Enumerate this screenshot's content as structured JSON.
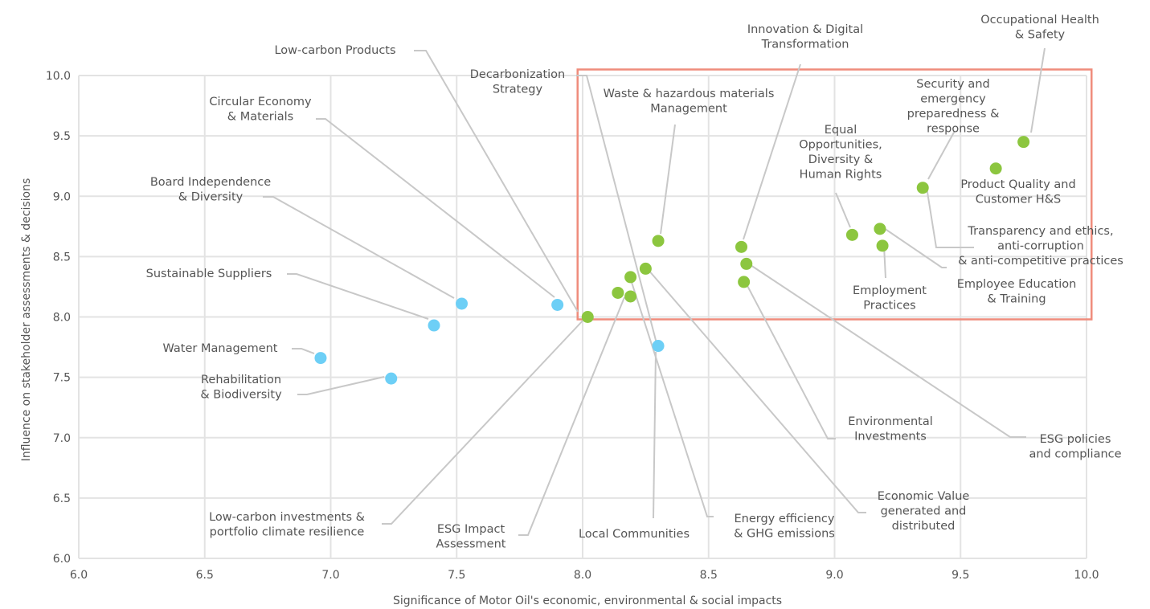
{
  "chart_data": {
    "type": "scatter",
    "title": "",
    "xlabel": "Significance of Motor Oil's economic, environmental & social impacts",
    "ylabel": "Influence on stakeholder assessments & decisions",
    "xlim": [
      6.0,
      10.0
    ],
    "ylim": [
      6.0,
      10.0
    ],
    "x_ticks": [
      "6.0",
      "6.5",
      "7.0",
      "7.5",
      "8.0",
      "8.5",
      "9.0",
      "9.5",
      "10.0"
    ],
    "y_ticks": [
      "10.0",
      "9.5",
      "9.0",
      "8.5",
      "8.0",
      "7.5",
      "7.0",
      "6.5",
      "6.0"
    ],
    "grid": true,
    "highlight_region": {
      "x": [
        7.98,
        10.02
      ],
      "y": [
        7.98,
        10.05
      ],
      "color": "#ef8c7c"
    },
    "colors": {
      "material": "#8cc63f",
      "other": "#6dcff6",
      "leader": "#c8c8c8",
      "grid": "#e3e3e3",
      "text": "#555555"
    },
    "points": [
      {
        "label": [
          "Occupational Health",
          "& Safety"
        ],
        "x": 9.75,
        "y": 9.45,
        "group": "material"
      },
      {
        "label": [
          "Product Quality and",
          "Customer H&S"
        ],
        "x": 9.64,
        "y": 9.23,
        "group": "material"
      },
      {
        "label": [
          "Security and",
          "emergency",
          "preparedness &",
          "response"
        ],
        "x": 9.35,
        "y": 9.07,
        "group": "material"
      },
      {
        "label": [
          "Equal",
          "Opportunities,",
          "Diversity &",
          "Human Rights"
        ],
        "x": 9.07,
        "y": 8.68,
        "group": "material"
      },
      {
        "label": [
          "Transparency and ethics,",
          "anti-corruption",
          "& anti-competitive practices"
        ],
        "x": 9.35,
        "y": 9.07,
        "group": "material"
      },
      {
        "label": [
          "Employee Education",
          "& Training"
        ],
        "x": 9.18,
        "y": 8.73,
        "group": "material"
      },
      {
        "label": [
          "Employment",
          "Practices"
        ],
        "x": 9.19,
        "y": 8.59,
        "group": "material"
      },
      {
        "label": [
          "Innovation & Digital",
          "Transformation"
        ],
        "x": 8.63,
        "y": 8.58,
        "group": "material"
      },
      {
        "label": [
          "ESG policies",
          "and compliance"
        ],
        "x": 8.65,
        "y": 8.44,
        "group": "material"
      },
      {
        "label": [
          "Environmental",
          "Investments"
        ],
        "x": 8.64,
        "y": 8.29,
        "group": "material"
      },
      {
        "label": [
          "Waste & hazardous materials",
          "Management"
        ],
        "x": 8.3,
        "y": 8.63,
        "group": "material"
      },
      {
        "label": [
          "Economic Value",
          "generated and",
          "distributed"
        ],
        "x": 8.25,
        "y": 8.4,
        "group": "material"
      },
      {
        "label": [
          "Energy efficiency",
          "& GHG emissions"
        ],
        "x": 8.19,
        "y": 8.33,
        "group": "material"
      },
      {
        "label": [
          "Decarbonization",
          "Strategy"
        ],
        "x": 8.14,
        "y": 8.2,
        "group": "material"
      },
      {
        "label": [
          "ESG Impact",
          "Assessment"
        ],
        "x": 8.19,
        "y": 8.17,
        "group": "material"
      },
      {
        "label": [
          "Low-carbon investments &",
          "portfolio climate resilience"
        ],
        "x": 8.02,
        "y": 8.0,
        "group": "material"
      },
      {
        "label": [
          "Local Communities"
        ],
        "x": 8.3,
        "y": 7.76,
        "group": "other"
      },
      {
        "label": [
          "Low-carbon Products"
        ],
        "x": 7.9,
        "y": 8.1,
        "group": "other"
      },
      {
        "label": [
          "Circular Economy",
          "& Materials"
        ],
        "x": 7.9,
        "y": 8.1,
        "group": "other"
      },
      {
        "label": [
          "Board Independence",
          "& Diversity"
        ],
        "x": 7.52,
        "y": 8.11,
        "group": "other"
      },
      {
        "label": [
          "Sustainable Suppliers"
        ],
        "x": 7.41,
        "y": 7.93,
        "group": "other"
      },
      {
        "label": [
          "Water Management"
        ],
        "x": 6.96,
        "y": 7.66,
        "group": "other"
      },
      {
        "label": [
          "Rehabilitation",
          "& Biodiversity"
        ],
        "x": 7.24,
        "y": 7.49,
        "group": "other"
      }
    ]
  }
}
